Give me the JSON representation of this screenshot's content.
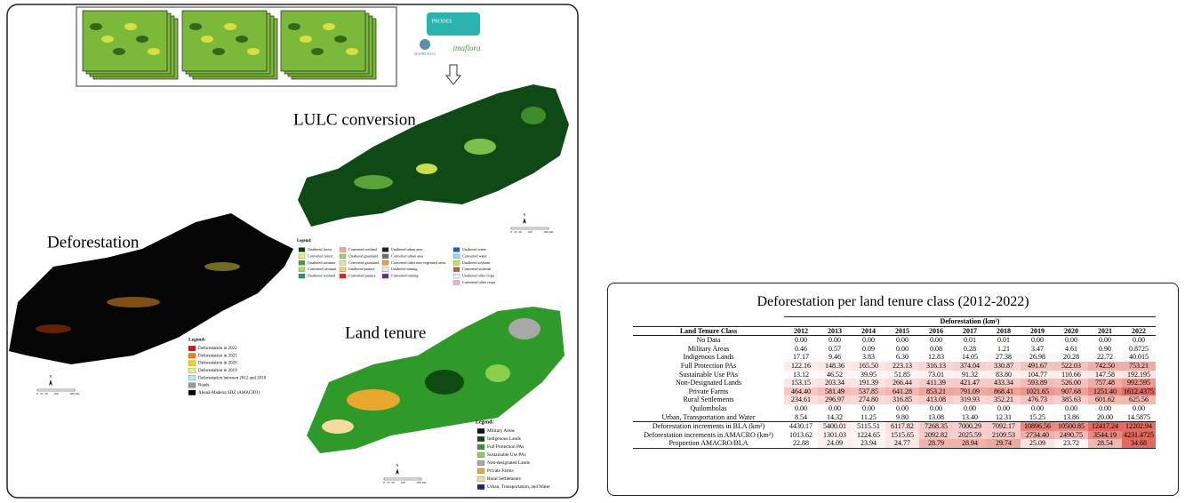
{
  "figure": {
    "logos": {
      "prodes": "PRODES",
      "mapbiomas": "MAPBIOMAS",
      "imaflora": "imaflora"
    },
    "lulc": {
      "title": "LULC conversion",
      "legend_title": "Legend:",
      "north": "N",
      "scale": [
        "0",
        "25",
        "50",
        "100",
        "200 km"
      ],
      "legend": [
        {
          "label": "Unaltered forest",
          "color": "#0b3d12"
        },
        {
          "label": "Converted forest",
          "color": "#e9f27a"
        },
        {
          "label": "Unaltered savanna",
          "color": "#4f9a3b"
        },
        {
          "label": "Converted savanna",
          "color": "#b4d85a"
        },
        {
          "label": "Unaltered wetland",
          "color": "#2f8f7a"
        },
        {
          "label": "Converted wetland",
          "color": "#f4a6a0"
        },
        {
          "label": "Unaltered grassland",
          "color": "#9fd07a"
        },
        {
          "label": "Converted grassland",
          "color": "#d8e8a8"
        },
        {
          "label": "Unaltered pasture",
          "color": "#f0d070"
        },
        {
          "label": "Converted pasture",
          "color": "#e02020"
        },
        {
          "label": "Unaltered urban area",
          "color": "#202020"
        },
        {
          "label": "Converted urban area",
          "color": "#707070"
        },
        {
          "label": "Converted other non-vegetated areas",
          "color": "#e8a040"
        },
        {
          "label": "Unaltered mining",
          "color": "#f4e0e0"
        },
        {
          "label": "Converted mining",
          "color": "#6a2a8a"
        },
        {
          "label": "Unaltered water",
          "color": "#2060c0"
        },
        {
          "label": "Converted water",
          "color": "#a0d8f0"
        },
        {
          "label": "Unaltered soybean",
          "color": "#c8e050"
        },
        {
          "label": "Converted soybean",
          "color": "#c06030"
        },
        {
          "label": "Unaltered other crops",
          "color": "#f0f0f0"
        },
        {
          "label": "Converted other crops",
          "color": "#f0b0d0"
        }
      ]
    },
    "deforestation": {
      "title": "Deforestation",
      "legend_title": "Legend:",
      "north": "N",
      "scale": [
        "0",
        "25",
        "50",
        "100",
        "200 km"
      ],
      "legend": [
        {
          "label": "Deforestation in 2022",
          "color": "#e01010"
        },
        {
          "label": "Deforestation in 2021",
          "color": "#f08020"
        },
        {
          "label": "Deforestation in 2020",
          "color": "#f0d020"
        },
        {
          "label": "Deforestation in 2019",
          "color": "#f4f080"
        },
        {
          "label": "Deforestation between 2012 and 2018",
          "color": "#a8f0f0"
        },
        {
          "label": "Roads",
          "color": "#9a9a9a"
        },
        {
          "label": "Abunã-Madeira SDZ (AMACRO)",
          "color": "#000000"
        }
      ]
    },
    "land_tenure": {
      "title": "Land tenure",
      "legend_title": "Legend:",
      "north": "N",
      "scale": [
        "0",
        "25",
        "50",
        "100",
        "200 km"
      ],
      "legend": [
        {
          "label": "Military Areas",
          "color": "#101010"
        },
        {
          "label": "Indigenous Lands",
          "color": "#0e4a12"
        },
        {
          "label": "Full Protection PAs",
          "color": "#2f9a2a"
        },
        {
          "label": "Sustainable Use PAs",
          "color": "#8ad04a"
        },
        {
          "label": "Non-designated Lands",
          "color": "#a8a8a8"
        },
        {
          "label": "Private Farms",
          "color": "#e8a830"
        },
        {
          "label": "Rural Settlements",
          "color": "#f4dca0"
        },
        {
          "label": "Urban, Transportation, and Water",
          "color": "#102a80"
        }
      ]
    }
  },
  "table": {
    "title": "Deforestation per land tenure class (2012-2022)",
    "group_header": "Deforestation (km²)",
    "columns": [
      "Land Tenure Class",
      "2012",
      "2013",
      "2014",
      "2015",
      "2016",
      "2017",
      "2018",
      "2019",
      "2020",
      "2021",
      "2022"
    ],
    "rows": [
      [
        "No Data",
        "0.00",
        "0.00",
        "0.00",
        "0.00",
        "0.00",
        "0.01",
        "0.01",
        "0.00",
        "0.00",
        "0.00",
        "0.00"
      ],
      [
        "Military Areas",
        "0.46",
        "0.57",
        "0.09",
        "0.00",
        "0.08",
        "0.28",
        "1.21",
        "3.47",
        "4.61",
        "0.90",
        "0.8725"
      ],
      [
        "Indigenous Lands",
        "17.17",
        "9.46",
        "3.83",
        "6.30",
        "12.83",
        "14.05",
        "27.38",
        "26.98",
        "20.28",
        "22.72",
        "40.015"
      ],
      [
        "Full Protection PAs",
        "122.16",
        "148.36",
        "165.50",
        "223.13",
        "316.13",
        "374.04",
        "330.87",
        "491.67",
        "522.03",
        "742.50",
        "753.21"
      ],
      [
        "Sustainable Use PAs",
        "13.12",
        "46.52",
        "39.95",
        "51.85",
        "73.01",
        "91.32",
        "83.80",
        "104.77",
        "110.66",
        "147.58",
        "192.195"
      ],
      [
        "Non-Designated Lands",
        "153.15",
        "203.34",
        "191.39",
        "266.44",
        "411.39",
        "421.47",
        "433.34",
        "593.89",
        "526.00",
        "757.48",
        "992.595"
      ],
      [
        "Private Farms",
        "464.40",
        "581.49",
        "537.85",
        "641.28",
        "853.21",
        "791.09",
        "868.41",
        "1021.65",
        "907.68",
        "1251.40",
        "1612.4375"
      ],
      [
        "Rural Settlements",
        "234.61",
        "296.97",
        "274.80",
        "316.85",
        "413.08",
        "319.93",
        "352.21",
        "476.73",
        "385.63",
        "601.62",
        "625.56"
      ],
      [
        "Quilombolas",
        "0.00",
        "0.00",
        "0.00",
        "0.00",
        "0.00",
        "0.00",
        "0.00",
        "0.00",
        "0.00",
        "0.00",
        "0.00"
      ],
      [
        "Urban, Transportation and Water",
        "8.54",
        "14.32",
        "11.25",
        "9.80",
        "13.08",
        "13.40",
        "12.31",
        "15.25",
        "13.86",
        "20.00",
        "14.5875"
      ],
      [
        "Deforestation increments in BLA (km²)",
        "4430.17",
        "5400.01",
        "5115.51",
        "6117.82",
        "7268.35",
        "7000.29",
        "7092.17",
        "10896.56",
        "10500.85",
        "12417.24",
        "12202.94"
      ],
      [
        "Deforestation increments in AMACRO (km²)",
        "1013.62",
        "1301.03",
        "1224.65",
        "1515.65",
        "2092.82",
        "2025.59",
        "2109.53",
        "2734.40",
        "2490.75",
        "3544.19",
        "4231.4725"
      ],
      [
        "Proportion AMACRO/BLA",
        "22.88",
        "24.09",
        "23.94",
        "24.77",
        "28.79",
        "28.94",
        "29.74",
        "25.09",
        "23.72",
        "28.54",
        "34.68"
      ]
    ]
  }
}
